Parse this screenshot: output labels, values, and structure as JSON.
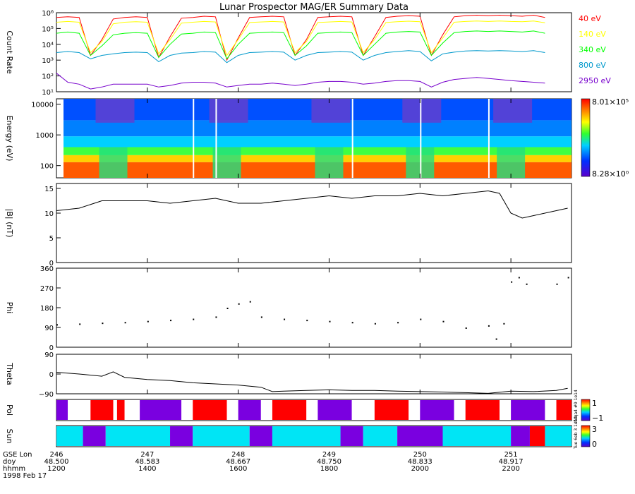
{
  "title": "Lunar Prospector MAG/ER Summary Data",
  "colors": {
    "axis": "#000000",
    "series_40": "#ff0000",
    "series_140": "#ffff00",
    "series_340": "#00ff00",
    "series_800": "#0099cc",
    "series_2950": "#7700cc",
    "pol_red": "#ff0000",
    "pol_purple": "#7a00e0",
    "sun_cyan": "#00e5f5",
    "sun_purple": "#7a00e0",
    "sun_red": "#ff0000"
  },
  "panels": {
    "count": {
      "ylabel": "Count Rate"
    },
    "energy": {
      "ylabel": "Energy (eV)",
      "cb_max": "8.01×10⁵",
      "cb_min": "8.28×10⁰"
    },
    "b": {
      "ylabel": "|B| (nT)"
    },
    "phi": {
      "ylabel": "Phi"
    },
    "theta": {
      "ylabel": "Theta"
    },
    "pol": {
      "ylabel": "Pol",
      "cb_max": "1",
      "cb_min": "−1",
      "cb_side": "Ifdqa4 #9 1e14"
    },
    "sun": {
      "ylabel": "Sun",
      "cb_max": "3",
      "cb_min": "0",
      "cb_side": "Tue 6eb 3 1e14"
    }
  },
  "x_axis_labels": {
    "rows": [
      "GSE Lon",
      "doy",
      "hhmm",
      "1998 Feb 17"
    ],
    "ticks": [
      {
        "lon": "246",
        "doy": "48.500",
        "hhmm": "1200"
      },
      {
        "lon": "247",
        "doy": "48.583",
        "hhmm": "1400"
      },
      {
        "lon": "248",
        "doy": "48.667",
        "hhmm": "1600"
      },
      {
        "lon": "249",
        "doy": "48.750",
        "hhmm": "1800"
      },
      {
        "lon": "250",
        "doy": "48.833",
        "hhmm": "2000"
      },
      {
        "lon": "251",
        "doy": "48.917",
        "hhmm": "2200"
      }
    ]
  },
  "chart_data": [
    {
      "type": "line",
      "ylabel": "Count Rate",
      "yscale": "log",
      "ylim": [
        10,
        1000000
      ],
      "yticks": [
        "10¹",
        "10²",
        "10³",
        "10⁴",
        "10⁵",
        "10⁶"
      ],
      "x": [
        1200,
        1215,
        1230,
        1245,
        1300,
        1315,
        1330,
        1345,
        1400,
        1415,
        1430,
        1445,
        1500,
        1515,
        1530,
        1545,
        1600,
        1615,
        1630,
        1645,
        1700,
        1715,
        1730,
        1745,
        1800,
        1815,
        1830,
        1845,
        1900,
        1915,
        1930,
        1945,
        2000,
        2015,
        2030,
        2045,
        2100,
        2115,
        2130,
        2145,
        2200,
        2215,
        2230,
        2245
      ],
      "series": [
        {
          "name": "40 eV",
          "color": "#ff0000",
          "values": [
            500000,
            550000,
            500000,
            2000,
            20000,
            400000,
            500000,
            550000,
            500000,
            1500,
            30000,
            450000,
            500000,
            600000,
            550000,
            1000,
            25000,
            500000,
            550000,
            600000,
            550000,
            2000,
            20000,
            500000,
            550000,
            600000,
            550000,
            2000,
            30000,
            500000,
            600000,
            650000,
            600000,
            2000,
            40000,
            550000,
            650000,
            700000,
            650000,
            700000,
            650000,
            600000,
            700000,
            500000
          ]
        },
        {
          "name": "140 eV",
          "color": "#ffff00",
          "values": [
            250000,
            280000,
            250000,
            3000,
            15000,
            200000,
            250000,
            270000,
            250000,
            2500,
            20000,
            220000,
            250000,
            280000,
            260000,
            2000,
            20000,
            240000,
            260000,
            280000,
            260000,
            3000,
            15000,
            240000,
            260000,
            280000,
            260000,
            3000,
            20000,
            240000,
            270000,
            290000,
            270000,
            3000,
            25000,
            250000,
            280000,
            300000,
            280000,
            300000,
            280000,
            270000,
            300000,
            230000
          ]
        },
        {
          "name": "340 eV",
          "color": "#00ff00",
          "values": [
            50000,
            60000,
            50000,
            2000,
            8000,
            40000,
            50000,
            55000,
            50000,
            1500,
            10000,
            45000,
            50000,
            60000,
            55000,
            1200,
            10000,
            50000,
            55000,
            60000,
            55000,
            2000,
            8000,
            50000,
            55000,
            60000,
            55000,
            2000,
            10000,
            50000,
            60000,
            65000,
            60000,
            2000,
            12000,
            55000,
            65000,
            70000,
            65000,
            70000,
            65000,
            60000,
            70000,
            50000
          ]
        },
        {
          "name": "800 eV",
          "color": "#0099cc",
          "values": [
            3000,
            3500,
            3000,
            1200,
            2000,
            2500,
            3000,
            3200,
            3000,
            800,
            2000,
            2800,
            3000,
            3500,
            3200,
            700,
            2000,
            3000,
            3200,
            3500,
            3200,
            1000,
            2000,
            3000,
            3200,
            3500,
            3200,
            1000,
            2000,
            3000,
            3500,
            4000,
            3500,
            900,
            2500,
            3200,
            3800,
            4000,
            3800,
            4000,
            3800,
            3500,
            4000,
            3000
          ]
        },
        {
          "name": "2950 eV",
          "color": "#7700cc",
          "values": [
            150,
            40,
            30,
            15,
            20,
            30,
            30,
            30,
            30,
            20,
            25,
            35,
            40,
            40,
            35,
            20,
            25,
            30,
            30,
            35,
            30,
            25,
            30,
            40,
            45,
            45,
            40,
            30,
            35,
            45,
            50,
            50,
            45,
            20,
            40,
            60,
            70,
            80,
            70,
            60,
            50,
            45,
            40,
            35
          ]
        }
      ]
    },
    {
      "type": "heatmap",
      "ylabel": "Energy (eV)",
      "yscale": "log",
      "ylim": [
        40,
        15000
      ],
      "yticks": [
        "100",
        "1000",
        "10000"
      ],
      "zlim": [
        8.28,
        801000
      ],
      "description_rows": "colour by energy band: high energy blue/purple, low energy orange/red",
      "dips_at_hhmm": [
        1315,
        1545,
        1800,
        2000,
        2200
      ],
      "gaps_at_hhmm": [
        1500,
        1530,
        1830,
        2000,
        2130
      ]
    },
    {
      "type": "line",
      "ylabel": "|B| (nT)",
      "ylim": [
        0,
        16
      ],
      "yticks": [
        "0",
        "5",
        "10",
        "15"
      ],
      "x": [
        1200,
        1230,
        1300,
        1330,
        1400,
        1430,
        1500,
        1530,
        1600,
        1630,
        1700,
        1730,
        1800,
        1830,
        1900,
        1930,
        2000,
        2030,
        2100,
        2130,
        2145,
        2200,
        2215,
        2230,
        2300,
        2315
      ],
      "values": [
        10.5,
        11,
        12.5,
        12.5,
        12.5,
        12,
        12.5,
        13,
        12,
        12,
        12.5,
        13,
        13.5,
        13,
        13.5,
        13.5,
        14,
        13.5,
        14,
        14.5,
        14,
        10,
        9,
        9.5,
        10.5,
        11
      ]
    },
    {
      "type": "scatter",
      "ylabel": "Phi",
      "ylim": [
        0,
        360
      ],
      "yticks": [
        "0",
        "90",
        "180",
        "270",
        "360"
      ],
      "x": [
        1200,
        1230,
        1300,
        1330,
        1400,
        1430,
        1500,
        1530,
        1545,
        1600,
        1615,
        1630,
        1700,
        1730,
        1800,
        1830,
        1900,
        1930,
        2000,
        2030,
        2100,
        2130,
        2140,
        2150,
        2200,
        2210,
        2220,
        2300,
        2315
      ],
      "values": [
        105,
        108,
        112,
        115,
        120,
        125,
        130,
        140,
        180,
        200,
        210,
        140,
        130,
        125,
        120,
        115,
        110,
        115,
        130,
        120,
        90,
        100,
        40,
        110,
        300,
        320,
        290,
        290,
        320
      ]
    },
    {
      "type": "line",
      "ylabel": "Theta",
      "ylim": [
        -90,
        90
      ],
      "yticks": [
        "−90",
        "0",
        "90"
      ],
      "x": [
        1200,
        1230,
        1300,
        1315,
        1330,
        1400,
        1430,
        1500,
        1530,
        1600,
        1630,
        1645,
        1700,
        1730,
        1800,
        1830,
        1900,
        1930,
        2000,
        2030,
        2100,
        2130,
        2200,
        2230,
        2300,
        2315
      ],
      "values": [
        8,
        0,
        -10,
        10,
        -15,
        -25,
        -30,
        -40,
        -45,
        -50,
        -60,
        -80,
        -78,
        -75,
        -72,
        -75,
        -75,
        -78,
        -80,
        -82,
        -85,
        -88,
        -78,
        -80,
        -75,
        -65
      ]
    },
    {
      "type": "heatmap",
      "ylabel": "Pol",
      "zlim": [
        -1,
        1
      ],
      "segments": [
        {
          "from": 1200,
          "to": 1215,
          "value": -1
        },
        {
          "from": 1215,
          "to": 1245,
          "value": 0
        },
        {
          "from": 1245,
          "to": 1315,
          "value": 1
        },
        {
          "from": 1315,
          "to": 1320,
          "value": 0
        },
        {
          "from": 1320,
          "to": 1330,
          "value": 1
        },
        {
          "from": 1330,
          "to": 1350,
          "value": 0
        },
        {
          "from": 1350,
          "to": 1445,
          "value": -1
        },
        {
          "from": 1445,
          "to": 1500,
          "value": 0
        },
        {
          "from": 1500,
          "to": 1545,
          "value": 1
        },
        {
          "from": 1545,
          "to": 1600,
          "value": 0
        },
        {
          "from": 1600,
          "to": 1630,
          "value": -1
        },
        {
          "from": 1630,
          "to": 1645,
          "value": 0
        },
        {
          "from": 1645,
          "to": 1730,
          "value": 1
        },
        {
          "from": 1730,
          "to": 1745,
          "value": 0
        },
        {
          "from": 1745,
          "to": 1830,
          "value": -1
        },
        {
          "from": 1830,
          "to": 1900,
          "value": 0
        },
        {
          "from": 1900,
          "to": 1945,
          "value": 1
        },
        {
          "from": 1945,
          "to": 2000,
          "value": 0
        },
        {
          "from": 2000,
          "to": 2045,
          "value": -1
        },
        {
          "from": 2045,
          "to": 2100,
          "value": 0
        },
        {
          "from": 2100,
          "to": 2145,
          "value": 1
        },
        {
          "from": 2145,
          "to": 2200,
          "value": 0
        },
        {
          "from": 2200,
          "to": 2245,
          "value": -1
        },
        {
          "from": 2245,
          "to": 2300,
          "value": 0
        },
        {
          "from": 2300,
          "to": 2320,
          "value": 1
        }
      ]
    },
    {
      "type": "heatmap",
      "ylabel": "Sun",
      "zlim": [
        0,
        3
      ],
      "segments": [
        {
          "from": 1200,
          "to": 1235,
          "value": 2
        },
        {
          "from": 1235,
          "to": 1305,
          "value": 0
        },
        {
          "from": 1305,
          "to": 1430,
          "value": 2
        },
        {
          "from": 1430,
          "to": 1500,
          "value": 0
        },
        {
          "from": 1500,
          "to": 1615,
          "value": 2
        },
        {
          "from": 1615,
          "to": 1645,
          "value": 0
        },
        {
          "from": 1645,
          "to": 1815,
          "value": 2
        },
        {
          "from": 1815,
          "to": 1845,
          "value": 0
        },
        {
          "from": 1845,
          "to": 1930,
          "value": 2
        },
        {
          "from": 1930,
          "to": 2030,
          "value": 0
        },
        {
          "from": 2030,
          "to": 2200,
          "value": 2
        },
        {
          "from": 2200,
          "to": 2225,
          "value": 0
        },
        {
          "from": 2225,
          "to": 2245,
          "value": 3
        },
        {
          "from": 2245,
          "to": 2320,
          "value": 2
        }
      ]
    }
  ]
}
